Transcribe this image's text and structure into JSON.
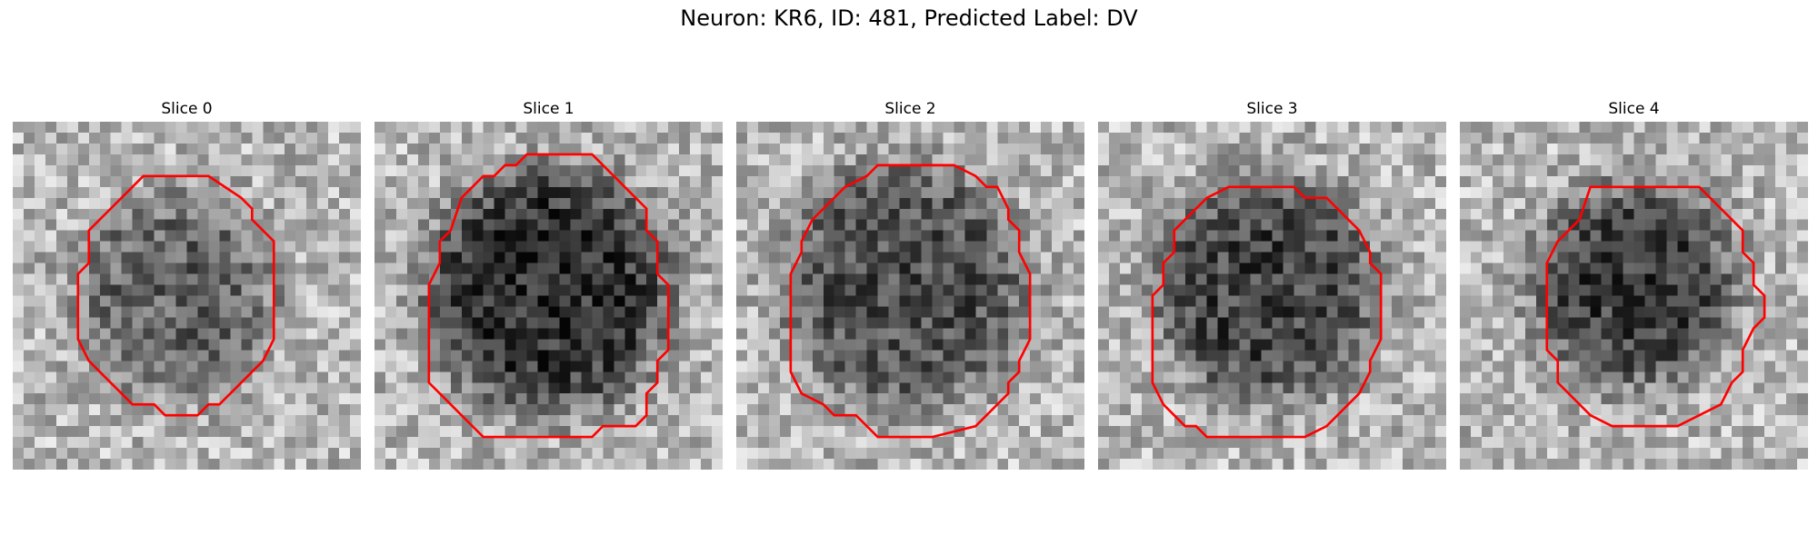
{
  "figure": {
    "title": "Neuron: KR6, ID: 481, Predicted Label: DV"
  },
  "contour_color": "#ff0000",
  "colormap": "gray",
  "slices": [
    {
      "label": "Slice 0",
      "seed": 11,
      "blob": {
        "cx": 15,
        "cy": 16,
        "r": 9,
        "depth": 0.45
      }
    },
    {
      "label": "Slice 1",
      "seed": 23,
      "blob": {
        "cx": 16,
        "cy": 15.5,
        "r": 11,
        "depth": 0.72
      }
    },
    {
      "label": "Slice 2",
      "seed": 37,
      "blob": {
        "cx": 15.5,
        "cy": 15,
        "r": 11,
        "depth": 0.55
      }
    },
    {
      "label": "Slice 3",
      "seed": 41,
      "blob": {
        "cx": 15.5,
        "cy": 15.5,
        "r": 10,
        "depth": 0.62
      }
    },
    {
      "label": "Slice 4",
      "seed": 53,
      "blob": {
        "cx": 16,
        "cy": 15,
        "r": 9,
        "depth": 0.65
      }
    }
  ]
}
